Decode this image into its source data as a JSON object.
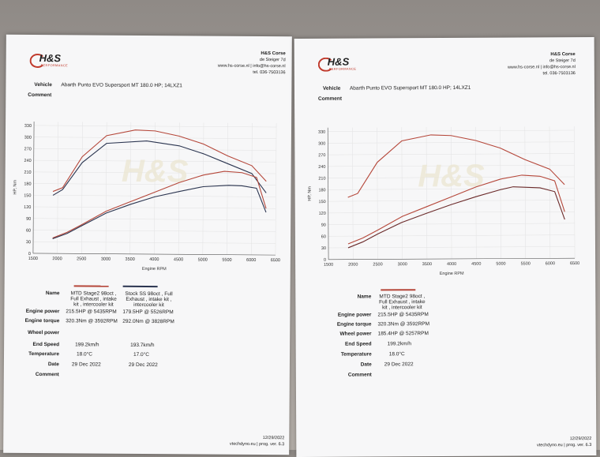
{
  "left": {
    "company": "H&S Corse",
    "address1": "de Steiger 7d",
    "address2": "www.hs-corse.nl | info@hs-corse.nl",
    "address3": "tel. 036-7503136",
    "vehicle_label": "Vehicle",
    "vehicle": "Abarth Punto EVO Supersport MT 180.0 HP; 14LXZ1",
    "comment_label": "Comment",
    "y_axis_label": "HP, Nm",
    "x_axis_label": "Engine RPM",
    "rows": {
      "name": "Name",
      "power": "Engine power",
      "torque": "Engine torque",
      "wheel": "Wheel power",
      "end": "End Speed",
      "temp": "Temperature",
      "date": "Date",
      "comment": "Comment"
    },
    "col1": {
      "name": "MTD Stage2 98oct , Full Exhaust , intake kit , intercooler kit",
      "power": "215.5HP @ 5435RPM",
      "torque": "320.3Nm @ 3592RPM",
      "end": "199.2km/h",
      "temp": "18.0°C",
      "date": "29 Dec 2022"
    },
    "col2": {
      "name": "Stock SS 98oct , Full Exhaust , intake kit , intercooler kit",
      "power": "179.5HP @ 5526RPM",
      "torque": "292.0Nm @ 3828RPM",
      "end": "193.7km/h",
      "temp": "17.0°C",
      "date": "29 Dec 2022"
    },
    "footer_date": "12/29/2022",
    "footer_prog": "vtechdyno.eu | prog. ver. 6.3"
  },
  "right": {
    "company": "H&S Corse",
    "address1": "de Steiger 7d",
    "address2": "www.hs-corse.nl | info@hs-corse.nl",
    "address3": "tel. 036-7503136",
    "vehicle_label": "Vehicle",
    "vehicle": "Abarth Punto EVO Supersport MT 180.0 HP; 14LXZ1",
    "comment_label": "Comment",
    "y_axis_label": "HP, Nm",
    "x_axis_label": "Engine RPM",
    "rows": {
      "name": "Name",
      "power": "Engine power",
      "torque": "Engine torque",
      "wheel": "Wheel power",
      "end": "End Speed",
      "temp": "Temperature",
      "date": "Date",
      "comment": "Comment"
    },
    "col1": {
      "name": "MTD Stage2 98oct , Full Exhaust , intake kit , intercooler kit",
      "power": "215.5HP @ 5435RPM",
      "torque": "320.3Nm @ 3592RPM",
      "wheel": "185.4HP @ 5257RPM",
      "end": "199.2km/h",
      "temp": "18.0°C",
      "date": "29 Dec 2022"
    },
    "footer_date": "12/29/2022",
    "footer_prog": "vtechdyno.eu | prog. ver. 6.3"
  },
  "colors": {
    "stage2": "#b5473a",
    "stock": "#2b3550",
    "wheel": "#6b2a2a"
  },
  "chart_data": [
    {
      "type": "line",
      "ylim": [
        0,
        340
      ],
      "xlim": [
        1500,
        6500
      ],
      "yticks": [
        0,
        30,
        60,
        90,
        120,
        150,
        180,
        210,
        240,
        270,
        300,
        330
      ],
      "xticks": [
        1500,
        2000,
        2500,
        3000,
        3500,
        4000,
        4500,
        5000,
        5500,
        6000,
        6500
      ],
      "series": [
        {
          "key": "stage2_torque",
          "color": "#b5473a",
          "x": [
            1900,
            2100,
            2500,
            3000,
            3592,
            4000,
            4500,
            5000,
            5500,
            6000,
            6300
          ],
          "y": [
            160,
            170,
            250,
            305,
            320,
            318,
            305,
            285,
            255,
            230,
            190
          ]
        },
        {
          "key": "stock_torque",
          "color": "#2b3550",
          "x": [
            1900,
            2100,
            2500,
            3000,
            3828,
            4500,
            5000,
            5500,
            6000,
            6300
          ],
          "y": [
            150,
            165,
            235,
            285,
            292,
            280,
            260,
            235,
            210,
            160
          ]
        },
        {
          "key": "stage2_power",
          "color": "#b5473a",
          "x": [
            1900,
            2200,
            2500,
            3000,
            3500,
            4000,
            4500,
            5000,
            5435,
            5800,
            6100,
            6300
          ],
          "y": [
            40,
            55,
            75,
            110,
            135,
            160,
            185,
            205,
            215,
            212,
            200,
            120
          ]
        },
        {
          "key": "stock_power",
          "color": "#2b3550",
          "x": [
            1900,
            2200,
            2500,
            3000,
            3500,
            4000,
            4500,
            5000,
            5526,
            5800,
            6100,
            6300
          ],
          "y": [
            38,
            52,
            72,
            105,
            128,
            148,
            162,
            175,
            179,
            178,
            172,
            110
          ]
        }
      ]
    },
    {
      "type": "line",
      "ylim": [
        0,
        340
      ],
      "xlim": [
        1500,
        6500
      ],
      "yticks": [
        0,
        30,
        60,
        90,
        120,
        150,
        180,
        210,
        240,
        270,
        300,
        330
      ],
      "xticks": [
        1500,
        2000,
        2500,
        3000,
        3500,
        4000,
        4500,
        5000,
        5500,
        6000,
        6500
      ],
      "series": [
        {
          "key": "stage2_torque",
          "color": "#b5473a",
          "x": [
            1900,
            2100,
            2500,
            3000,
            3592,
            4000,
            4500,
            5000,
            5500,
            6000,
            6300
          ],
          "y": [
            160,
            170,
            250,
            305,
            320,
            318,
            305,
            285,
            255,
            230,
            190
          ]
        },
        {
          "key": "stage2_power",
          "color": "#b5473a",
          "x": [
            1900,
            2200,
            2500,
            3000,
            3500,
            4000,
            4500,
            5000,
            5435,
            5800,
            6100,
            6300
          ],
          "y": [
            40,
            55,
            75,
            110,
            135,
            160,
            185,
            205,
            215,
            212,
            200,
            120
          ]
        },
        {
          "key": "wheel_power",
          "color": "#6b2a2a",
          "x": [
            1900,
            2200,
            2500,
            3000,
            3500,
            4000,
            4500,
            5000,
            5257,
            5800,
            6100,
            6300
          ],
          "y": [
            30,
            45,
            65,
            95,
            118,
            140,
            160,
            178,
            185,
            182,
            172,
            100
          ]
        }
      ]
    }
  ]
}
